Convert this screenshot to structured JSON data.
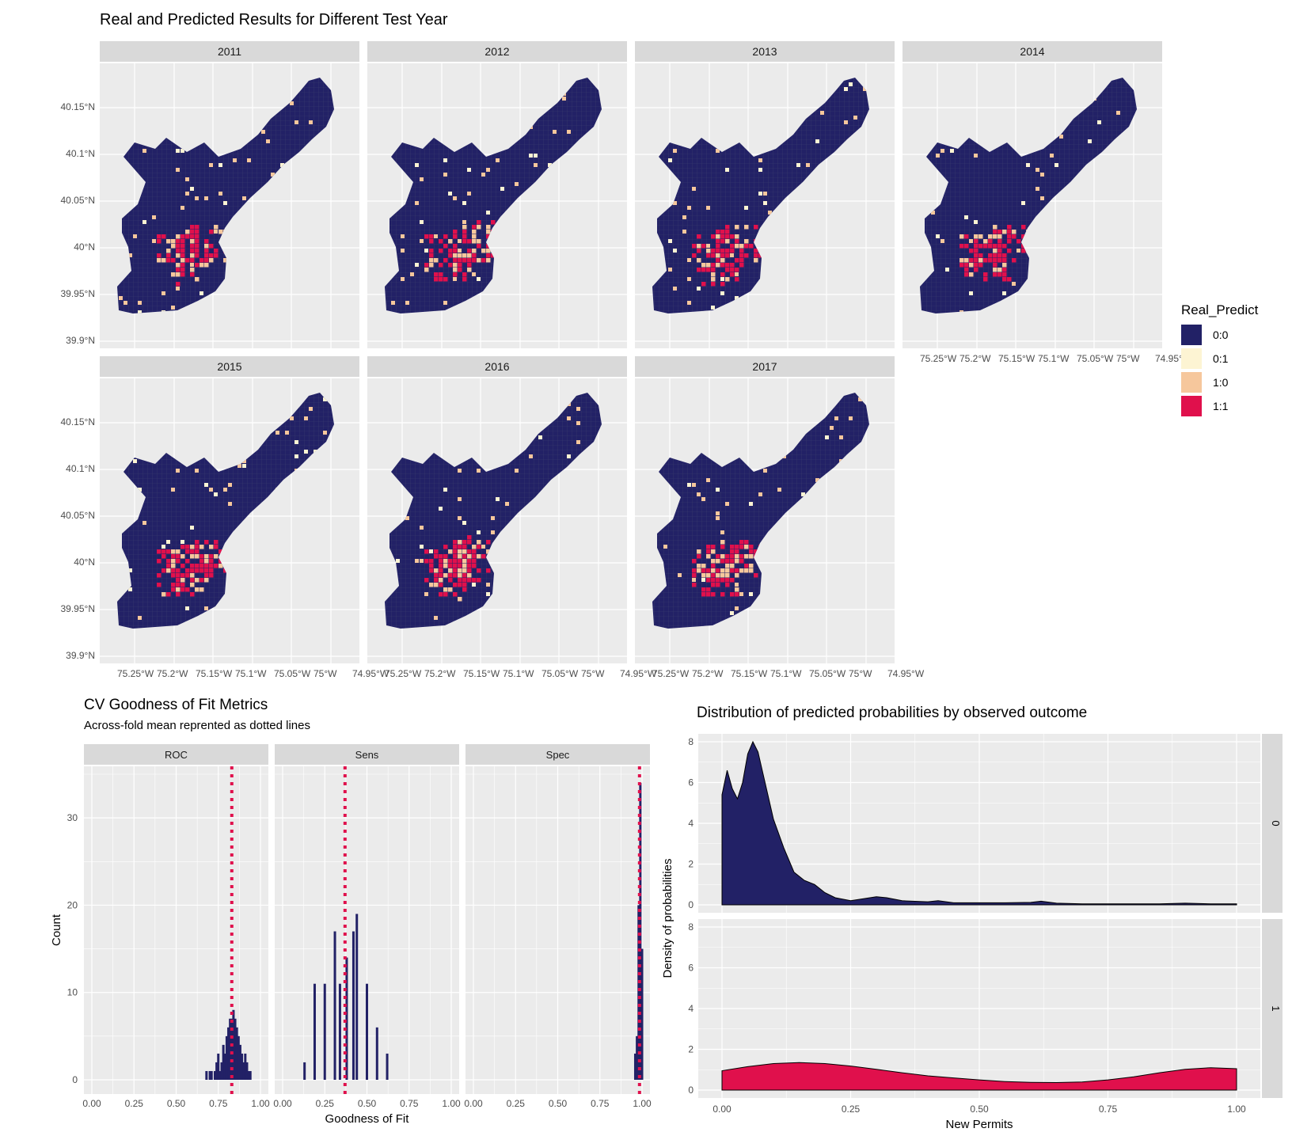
{
  "maps": {
    "title": "Real and Predicted Results for Different Test Year",
    "years": [
      "2011",
      "2012",
      "2013",
      "2014",
      "2015",
      "2016",
      "2017"
    ],
    "lat_ticks": [
      "40.15°N",
      "40.1°N",
      "40.05°N",
      "40°N",
      "39.95°N",
      "39.9°N"
    ],
    "lon_ticks": [
      "75.25°W",
      "75.2°W",
      "75.15°W",
      "75.1°W",
      "75.05°W",
      "75°W",
      "74.95°W"
    ],
    "legend_title": "Real_Predict",
    "legend": [
      {
        "label": "0:0",
        "color": "#222166"
      },
      {
        "label": "0:1",
        "color": "#fdf4d3"
      },
      {
        "label": "1:0",
        "color": "#f6c79c"
      },
      {
        "label": "1:1",
        "color": "#e0104c"
      }
    ]
  },
  "chart_data": [
    {
      "type": "bar",
      "title": "CV Goodness of Fit Metrics",
      "subtitle": "Across-fold mean reprented as dotted lines",
      "xlabel": "Goodness of Fit",
      "ylabel": "Count",
      "xlim": [
        0,
        1
      ],
      "ylim": [
        0,
        35
      ],
      "x_ticks": [
        "0.00",
        "0.25",
        "0.50",
        "0.75",
        "1.00"
      ],
      "y_ticks": [
        0,
        10,
        20,
        30
      ],
      "bar_color": "#222166",
      "mean_line_color": "#e0104c",
      "facets": [
        {
          "name": "ROC",
          "mean": 0.83,
          "bars": [
            [
              0.68,
              1
            ],
            [
              0.7,
              1
            ],
            [
              0.71,
              1
            ],
            [
              0.73,
              1
            ],
            [
              0.74,
              2
            ],
            [
              0.75,
              3
            ],
            [
              0.76,
              1
            ],
            [
              0.77,
              2
            ],
            [
              0.78,
              4
            ],
            [
              0.79,
              3
            ],
            [
              0.8,
              5
            ],
            [
              0.81,
              6
            ],
            [
              0.82,
              7
            ],
            [
              0.83,
              7
            ],
            [
              0.84,
              8
            ],
            [
              0.85,
              7
            ],
            [
              0.86,
              6
            ],
            [
              0.87,
              5
            ],
            [
              0.88,
              4
            ],
            [
              0.89,
              3
            ],
            [
              0.9,
              2
            ],
            [
              0.91,
              3
            ],
            [
              0.92,
              2
            ],
            [
              0.93,
              1
            ],
            [
              0.94,
              1
            ]
          ]
        },
        {
          "name": "Sens",
          "mean": 0.37,
          "bars": [
            [
              0.13,
              2
            ],
            [
              0.19,
              11
            ],
            [
              0.25,
              11
            ],
            [
              0.31,
              17
            ],
            [
              0.34,
              11
            ],
            [
              0.38,
              14
            ],
            [
              0.42,
              17
            ],
            [
              0.44,
              19
            ],
            [
              0.5,
              11
            ],
            [
              0.56,
              6
            ],
            [
              0.62,
              3
            ]
          ]
        },
        {
          "name": "Spec",
          "mean": 0.985,
          "bars": [
            [
              0.96,
              3
            ],
            [
              0.97,
              5
            ],
            [
              0.98,
              20
            ],
            [
              0.99,
              34
            ],
            [
              1.0,
              15
            ]
          ]
        }
      ]
    },
    {
      "type": "area",
      "title": "Distribution of predicted probabilities by observed outcome",
      "xlabel": "New Permits",
      "ylabel": "Density of probabilities",
      "xlim": [
        0,
        1
      ],
      "ylim": [
        0,
        8
      ],
      "x_ticks": [
        "0.00",
        "0.25",
        "0.50",
        "0.75",
        "1.00"
      ],
      "y_ticks": [
        0,
        2,
        4,
        6,
        8
      ],
      "facets": [
        {
          "name": "0",
          "color": "#222166",
          "x": [
            0,
            0.01,
            0.02,
            0.03,
            0.04,
            0.05,
            0.06,
            0.07,
            0.08,
            0.09,
            0.1,
            0.12,
            0.14,
            0.16,
            0.18,
            0.2,
            0.22,
            0.25,
            0.3,
            0.32,
            0.35,
            0.4,
            0.42,
            0.45,
            0.5,
            0.55,
            0.6,
            0.62,
            0.65,
            0.7,
            0.75,
            0.8,
            0.85,
            0.9,
            0.95,
            1.0
          ],
          "y": [
            5.4,
            6.6,
            5.7,
            5.2,
            6.0,
            7.4,
            8.0,
            7.5,
            6.4,
            5.3,
            4.2,
            2.8,
            1.6,
            1.2,
            1.0,
            0.6,
            0.35,
            0.2,
            0.4,
            0.35,
            0.2,
            0.15,
            0.2,
            0.1,
            0.1,
            0.1,
            0.12,
            0.18,
            0.08,
            0.05,
            0.05,
            0.05,
            0.05,
            0.08,
            0.05,
            0.05
          ]
        },
        {
          "name": "1",
          "color": "#e0104c",
          "x": [
            0,
            0.05,
            0.1,
            0.15,
            0.2,
            0.25,
            0.3,
            0.35,
            0.4,
            0.45,
            0.5,
            0.55,
            0.6,
            0.65,
            0.7,
            0.75,
            0.8,
            0.85,
            0.9,
            0.95,
            1.0
          ],
          "y": [
            0.95,
            1.15,
            1.3,
            1.35,
            1.3,
            1.18,
            1.02,
            0.85,
            0.7,
            0.6,
            0.5,
            0.42,
            0.38,
            0.37,
            0.4,
            0.5,
            0.65,
            0.85,
            1.02,
            1.1,
            1.05
          ]
        }
      ]
    }
  ]
}
